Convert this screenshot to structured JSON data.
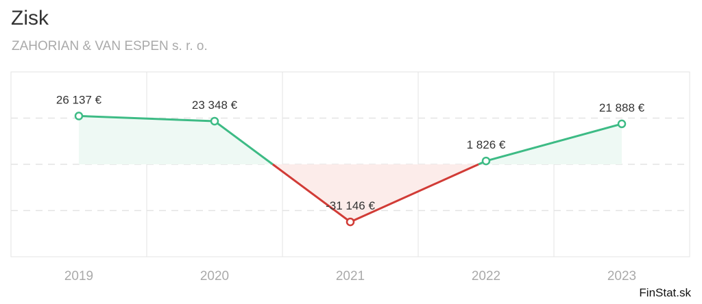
{
  "header": {
    "title": "Zisk",
    "subtitle": "ZAHORIAN & VAN ESPEN s. r. o."
  },
  "footer": {
    "credit": "FinStat.sk"
  },
  "colors": {
    "positive": "#3dbb85",
    "negative": "#d13b36",
    "positive_fill": "#eef9f4",
    "negative_fill": "#fcecea",
    "grid": "#e3e3e3",
    "axis_label": "#aaaaaa",
    "data_label": "#333333"
  },
  "chart_data": {
    "type": "line",
    "title": "Zisk",
    "subtitle": "ZAHORIAN & VAN ESPEN s. r. o.",
    "categories": [
      "2019",
      "2020",
      "2021",
      "2022",
      "2023"
    ],
    "series": [
      {
        "values": [
          26137,
          23348,
          -31146,
          1826,
          21888
        ],
        "labels": [
          "26 137 €",
          "23 348 €",
          "-31 146 €",
          "1 826 €",
          "21 888 €"
        ]
      }
    ],
    "ylim": [
      -50000,
      50000
    ],
    "grid": true,
    "legend": "none",
    "xlabel": "",
    "ylabel": ""
  }
}
